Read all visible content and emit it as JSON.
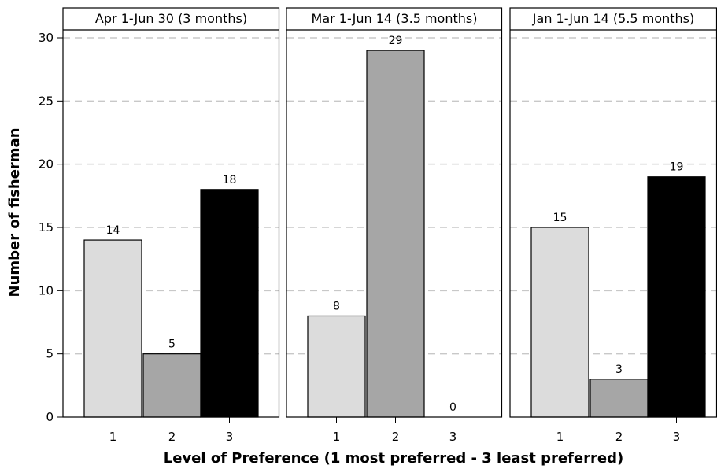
{
  "chart_data": {
    "type": "bar",
    "xlabel": "Level of Preference (1 most preferred - 3 least preferred)",
    "ylabel": "Number of fisherman",
    "ylim": [
      0,
      30
    ],
    "yticks": [
      0,
      5,
      10,
      15,
      20,
      25,
      30
    ],
    "categories": [
      "1",
      "2",
      "3"
    ],
    "grid": "horizontal dashed",
    "bar_colors": [
      "#dcdcdc",
      "#a6a6a6",
      "#000000"
    ],
    "panels": [
      {
        "title": "Apr 1-Jun 30 (3 months)",
        "values": [
          14,
          5,
          18
        ]
      },
      {
        "title": "Mar 1-Jun 14 (3.5 months)",
        "values": [
          8,
          29,
          0
        ]
      },
      {
        "title": "Jan 1-Jun 14 (5.5 months)",
        "values": [
          15,
          3,
          19
        ]
      }
    ]
  }
}
